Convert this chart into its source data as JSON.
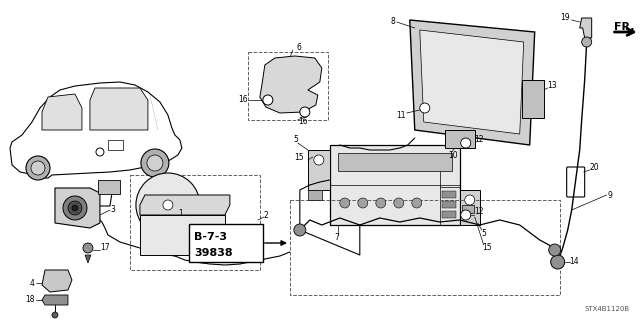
{
  "bg_color": "#ffffff",
  "line_color": "#000000",
  "gray_color": "#606060",
  "light_gray": "#c8c8c8",
  "fig_width": 6.4,
  "fig_height": 3.19,
  "dpi": 100,
  "footer_text": "STX4B1120B",
  "ref_text1": "B-7-3",
  "ref_text2": "39838",
  "fr_label": "FR.",
  "label_fontsize": 5.5,
  "bold_fontsize": 7.0
}
